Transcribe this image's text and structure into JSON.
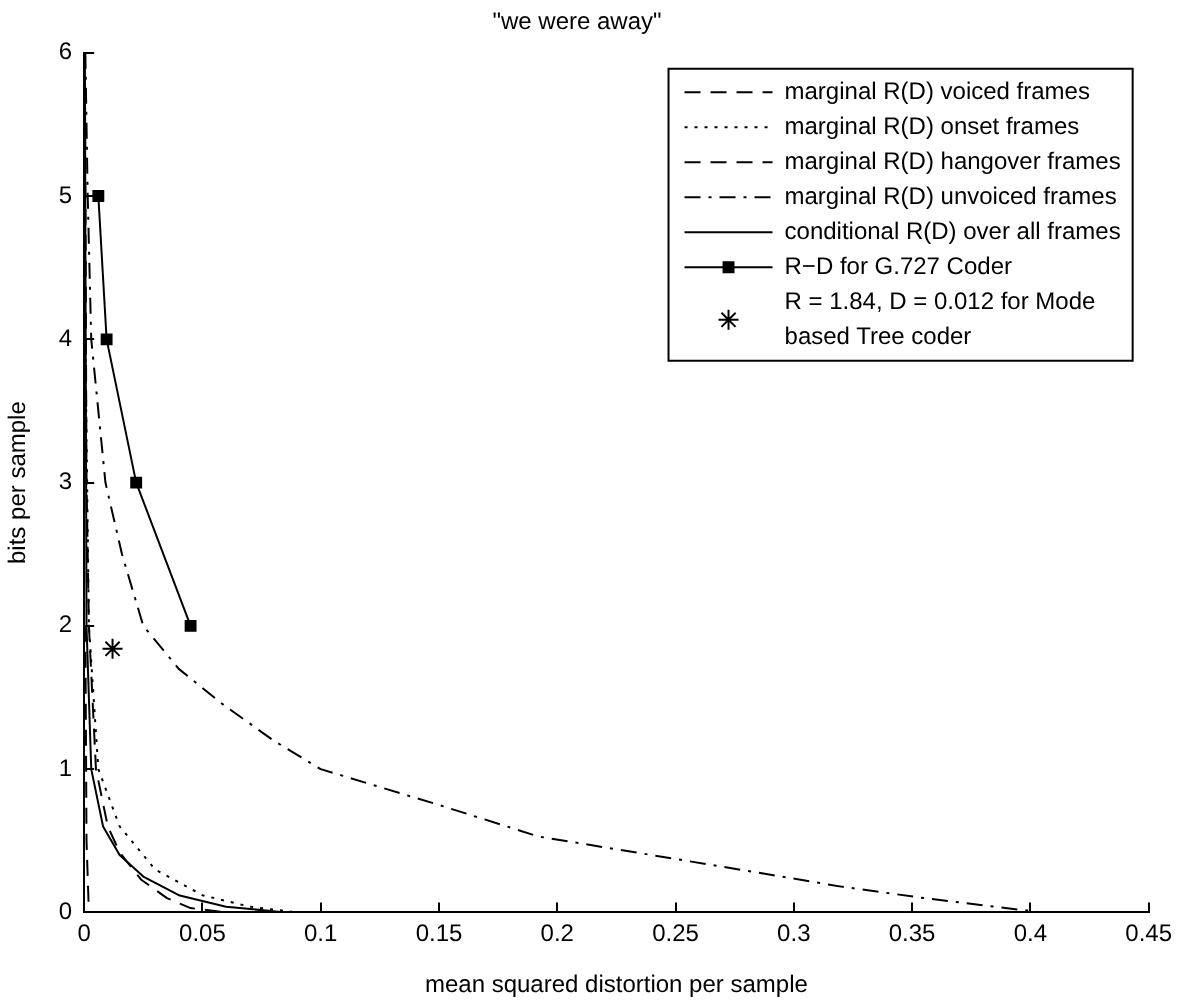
{
  "chart_data": {
    "type": "line",
    "title": "\"we were away\"",
    "xlabel": "mean squared distortion per sample",
    "ylabel": "bits per sample",
    "xlim": [
      0,
      0.45
    ],
    "xticks": [
      0,
      0.05,
      0.1,
      0.15,
      0.2,
      0.25,
      0.3,
      0.35,
      0.4,
      0.45
    ],
    "ylim": [
      0,
      6
    ],
    "yticks": [
      0,
      1,
      2,
      3,
      4,
      5,
      6
    ],
    "grid": false,
    "legend": "top right",
    "series": [
      {
        "name": "marginal R(D) voiced frames",
        "color": "#000000",
        "line_style": "dashed",
        "x": [
          0.0003,
          0.001,
          0.002,
          0.005,
          0.01,
          0.015,
          0.024,
          0.035,
          0.045,
          0.06
        ],
        "values": [
          6,
          3,
          2,
          1,
          0.6,
          0.42,
          0.23,
          0.1,
          0.03,
          0
        ]
      },
      {
        "name": "marginal R(D) onset frames",
        "color": "#000000",
        "line_style": "dotted",
        "x": [
          0.0005,
          0.002,
          0.006,
          0.015,
          0.03,
          0.05,
          0.07,
          0.09
        ],
        "values": [
          4,
          2,
          1,
          0.6,
          0.3,
          0.12,
          0.04,
          0
        ]
      },
      {
        "name": "marginal R(D) hangover frames",
        "color": "#000000",
        "line_style": "dashed",
        "x": [
          0.0005,
          0.001,
          0.002,
          0.42
        ],
        "values": [
          2,
          0.5,
          0,
          0
        ]
      },
      {
        "name": "marginal R(D) unvoiced frames",
        "color": "#000000",
        "line_style": "dashdot",
        "x": [
          0.0005,
          0.0015,
          0.003,
          0.009,
          0.016,
          0.025,
          0.04,
          0.058,
          0.08,
          0.1,
          0.15,
          0.192,
          0.24,
          0.284,
          0.32,
          0.355,
          0.38,
          0.405
        ],
        "values": [
          6,
          5,
          4,
          3,
          2.5,
          2,
          1.7,
          1.46,
          1.2,
          1.0,
          0.75,
          0.53,
          0.4,
          0.28,
          0.18,
          0.1,
          0.05,
          0
        ]
      },
      {
        "name": "conditional R(D) over all frames",
        "color": "#000000",
        "line_style": "solid",
        "x": [
          0.0003,
          0.001,
          0.003,
          0.008,
          0.015,
          0.025,
          0.04,
          0.06,
          0.085
        ],
        "values": [
          6,
          2,
          1,
          0.6,
          0.4,
          0.25,
          0.12,
          0.04,
          0
        ]
      },
      {
        "name": "R−D for G.727 Coder",
        "color": "#000000",
        "line_style": "solid",
        "marker": "square",
        "x": [
          0.006,
          0.0095,
          0.022,
          0.045
        ],
        "values": [
          5,
          4,
          3,
          2
        ]
      },
      {
        "name": "R = 1.84, D = 0.012 for Mode based Tree coder",
        "type": "scatter",
        "color": "#000000",
        "marker": "cross",
        "x": [
          0.012
        ],
        "values": [
          1.84
        ]
      }
    ]
  }
}
